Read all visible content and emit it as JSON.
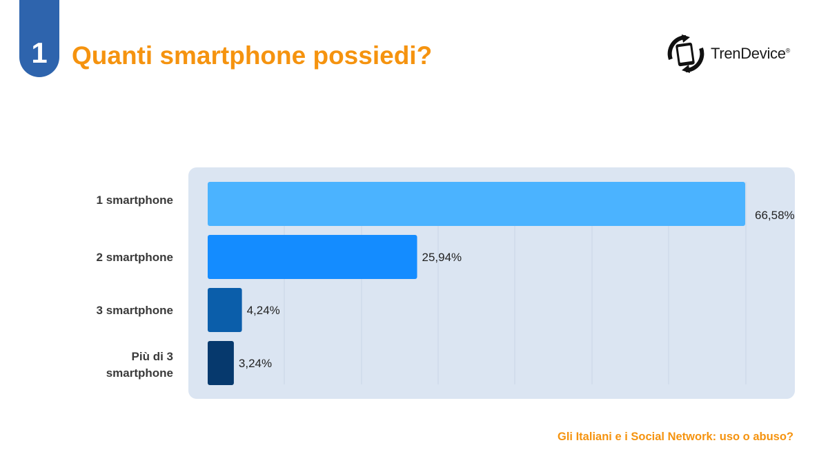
{
  "header": {
    "number": "1",
    "title": "Quanti smartphone possiedi?"
  },
  "brand": {
    "name": "TrenDevice",
    "reg_mark": "®",
    "icon": "phone-cycle-icon"
  },
  "footer": {
    "text": "Gli Italiani e i Social Network: uso o abuso?"
  },
  "colors": {
    "accent": "#f5930f",
    "badge": "#2e64ad",
    "panel": "#dbe5f2",
    "text": "#3a3a3a"
  },
  "chart_data": {
    "type": "bar",
    "orientation": "horizontal",
    "categories": [
      "1 smartphone",
      "2 smartphone",
      "3 smartphone",
      "Più di 3 smartphone"
    ],
    "category_lines": [
      [
        "1 smartphone"
      ],
      [
        "2 smartphone"
      ],
      [
        "3 smartphone"
      ],
      [
        "Più di 3",
        "smartphone"
      ]
    ],
    "values": [
      66.58,
      25.94,
      4.24,
      3.24
    ],
    "value_labels": [
      "66,58%",
      "25,94%",
      "4,24%",
      "3,24%"
    ],
    "bar_colors": [
      "#4bb3ff",
      "#148cff",
      "#0b5eaa",
      "#06396d"
    ],
    "xlim": [
      0,
      70
    ],
    "grid": true,
    "title": "",
    "xlabel": "",
    "ylabel": ""
  }
}
